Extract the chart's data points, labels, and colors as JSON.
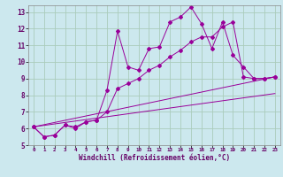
{
  "xlabel": "Windchill (Refroidissement éolien,°C)",
  "background_color": "#cce8ee",
  "grid_color": "#aaccbb",
  "line_color": "#990099",
  "xlim": [
    -0.5,
    23.5
  ],
  "ylim": [
    5.0,
    13.4
  ],
  "yticks": [
    5,
    6,
    7,
    8,
    9,
    10,
    11,
    12,
    13
  ],
  "xticks": [
    0,
    1,
    2,
    3,
    4,
    5,
    6,
    7,
    8,
    9,
    10,
    11,
    12,
    13,
    14,
    15,
    16,
    17,
    18,
    19,
    20,
    21,
    22,
    23
  ],
  "series": {
    "line1_x": [
      0,
      1,
      2,
      3,
      4,
      5,
      6,
      7,
      8,
      9,
      10,
      11,
      12,
      13,
      14,
      15,
      16,
      17,
      18,
      19,
      20,
      21,
      22,
      23
    ],
    "line1_y": [
      6.1,
      5.5,
      5.6,
      6.2,
      6.0,
      6.4,
      6.5,
      8.3,
      11.85,
      9.7,
      9.5,
      10.8,
      10.9,
      12.4,
      12.7,
      13.3,
      12.3,
      10.8,
      12.4,
      10.4,
      9.7,
      9.0,
      9.0,
      9.1
    ],
    "line2_x": [
      0,
      1,
      2,
      3,
      4,
      5,
      6,
      7,
      8,
      9,
      10,
      11,
      12,
      13,
      14,
      15,
      16,
      17,
      18,
      19,
      20,
      21,
      22,
      23
    ],
    "line2_y": [
      6.1,
      5.5,
      5.6,
      6.2,
      6.1,
      6.4,
      6.5,
      7.0,
      8.4,
      8.7,
      9.0,
      9.5,
      9.8,
      10.3,
      10.7,
      11.2,
      11.5,
      11.5,
      12.1,
      12.4,
      9.1,
      9.0,
      9.0,
      9.1
    ],
    "line3_x": [
      0,
      23
    ],
    "line3_y": [
      6.1,
      9.1
    ],
    "line4_x": [
      0,
      23
    ],
    "line4_y": [
      6.1,
      8.1
    ]
  }
}
